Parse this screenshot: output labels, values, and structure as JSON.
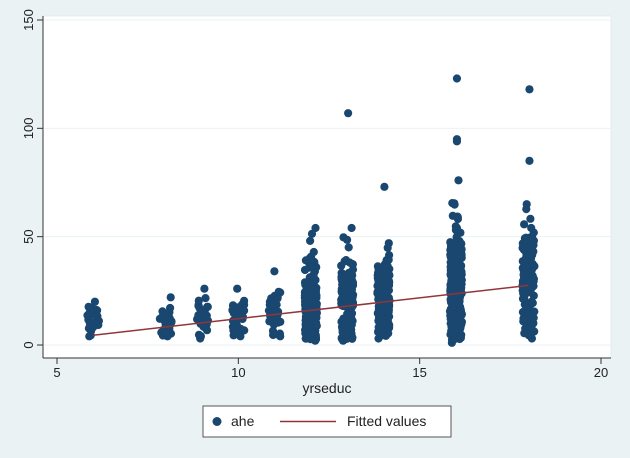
{
  "chart_data": {
    "type": "scatter",
    "xlabel": "yrseduc",
    "ylabel": "",
    "xlim": [
      5,
      20
    ],
    "ylim": [
      0,
      150
    ],
    "xticks": [
      5,
      10,
      15,
      20
    ],
    "yticks": [
      0,
      50,
      100,
      150
    ],
    "grid": "horizontal",
    "legend_position": "bottom",
    "colors": {
      "scatter": "#1a476f",
      "fit_line": "#90353b",
      "plot_background": "#ffffff",
      "outer_background": "#eaf2f3",
      "grid": "#eaf2f3"
    },
    "series": [
      {
        "name": "ahe",
        "kind": "scatter",
        "groups": [
          {
            "x": 6,
            "n": 25,
            "lo": 4,
            "hi": 20,
            "center": 11
          },
          {
            "x": 8,
            "n": 35,
            "lo": 4,
            "hi": 22,
            "center": 10
          },
          {
            "x": 9,
            "n": 30,
            "lo": 3,
            "hi": 26,
            "center": 11
          },
          {
            "x": 10,
            "n": 40,
            "lo": 4,
            "hi": 26,
            "center": 12
          },
          {
            "x": 11,
            "n": 35,
            "lo": 4,
            "hi": 34,
            "center": 14
          },
          {
            "x": 12,
            "n": 300,
            "lo": 2,
            "hi": 54,
            "center": 15
          },
          {
            "x": 13,
            "n": 200,
            "lo": 2,
            "hi": 54,
            "center": 18
          },
          {
            "x": 14,
            "n": 200,
            "lo": 3,
            "hi": 47,
            "center": 20
          },
          {
            "x": 16,
            "n": 320,
            "lo": 1,
            "hi": 76,
            "center": 25
          },
          {
            "x": 18,
            "n": 170,
            "lo": 3,
            "hi": 65,
            "center": 27
          }
        ],
        "outliers": [
          {
            "x": 13,
            "y": 107
          },
          {
            "x": 14,
            "y": 73
          },
          {
            "x": 16,
            "y": 123
          },
          {
            "x": 16,
            "y": 95
          },
          {
            "x": 16,
            "y": 94
          },
          {
            "x": 18,
            "y": 118
          },
          {
            "x": 18,
            "y": 85
          }
        ]
      },
      {
        "name": "Fitted values",
        "kind": "line",
        "points": [
          {
            "x": 6,
            "y": 4.5
          },
          {
            "x": 18,
            "y": 27.5
          }
        ]
      }
    ]
  }
}
